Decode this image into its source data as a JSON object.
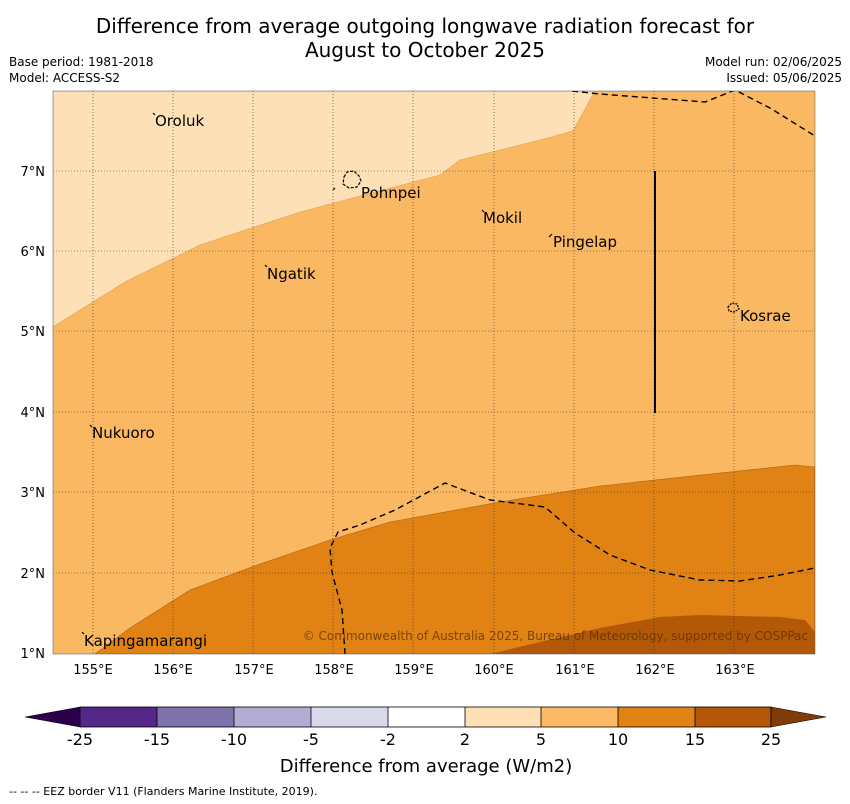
{
  "title": {
    "line1": "Difference from average outgoing longwave radiation forecast for",
    "line2": "August to October 2025"
  },
  "meta": {
    "base_period": "Base period: 1981-2018",
    "model": "Model: ACCESS-S2",
    "model_run": "Model run: 02/06/2025",
    "issued": "Issued: 05/06/2025"
  },
  "map": {
    "lat_labels": [
      "7°N",
      "6°N",
      "5°N",
      "4°N",
      "3°N",
      "2°N",
      "1°N"
    ],
    "lon_labels": [
      "155°E",
      "156°E",
      "157°E",
      "158°E",
      "159°E",
      "160°E",
      "161°E",
      "162°E",
      "163°E"
    ],
    "places": {
      "oroluk": "Oroluk",
      "pohnpei": "Pohnpei",
      "mokil": "Mokil",
      "pingelap": "Pingelap",
      "ngatik": "Ngatik",
      "kosrae": "Kosrae",
      "nukuoro": "Nukuoro",
      "kapingamarangi": "Kapingamarangi"
    },
    "copyright": "© Commonwealth of Australia 2025, Bureau of Meteorology, supported by COSPPac",
    "colors": {
      "bin_2_5": "#fde0b6",
      "bin_5_10": "#fab862",
      "bin_10_15": "#e08214",
      "bin_15_25": "#b35806"
    }
  },
  "colorbar": {
    "ticks": [
      "-25",
      "-15",
      "-10",
      "-5",
      "-2",
      "2",
      "5",
      "10",
      "15",
      "25"
    ],
    "colors": [
      "#2d004b",
      "#542788",
      "#8073ac",
      "#b2abd2",
      "#d8daeb",
      "#ffffff",
      "#fee0b6",
      "#fdb863",
      "#e08214",
      "#b35806",
      "#7f3b08"
    ],
    "label": "Difference from average (W/m2)"
  },
  "footer": "--  --  -- EEZ border V11 (Flanders Marine Institute, 2019)."
}
